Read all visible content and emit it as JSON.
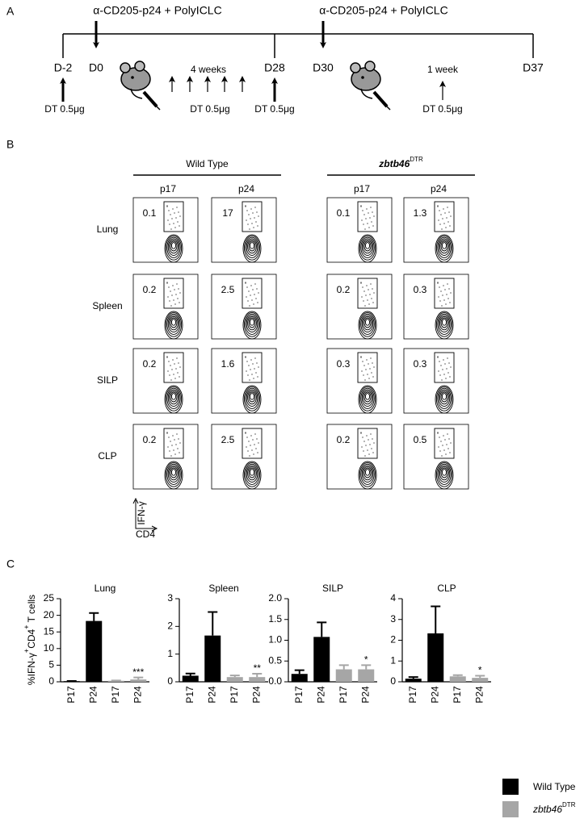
{
  "panel_a": {
    "label": "A",
    "injection_labels": [
      "α-CD205-p24 + PolyICLC",
      "α-CD205-p24 + PolyICLC"
    ],
    "timepoints": [
      "D-2",
      "D0",
      "D28",
      "D30",
      "D37"
    ],
    "durations": [
      "4 weeks",
      "1 week"
    ],
    "dt_labels": [
      "DT 0.5μg",
      "DT 0.5μg",
      "DT 0.5μg",
      "DT 0.5μg"
    ]
  },
  "panel_b": {
    "label": "B",
    "groups": [
      {
        "name": "Wild Type"
      },
      {
        "name": "zbtb46",
        "superscript": "DTR"
      }
    ],
    "columns": [
      "p17",
      "p24",
      "p17",
      "p24"
    ],
    "rows": [
      "Lung",
      "Spleen",
      "SILP",
      "CLP"
    ],
    "values": [
      [
        0.1,
        17,
        0.1,
        1.3
      ],
      [
        0.2,
        2.5,
        0.2,
        0.3
      ],
      [
        0.2,
        1.6,
        0.3,
        0.3
      ],
      [
        0.2,
        2.5,
        0.2,
        0.5
      ]
    ],
    "y_axis": "IFN-γ",
    "x_axis": "CD4"
  },
  "panel_c": {
    "label": "C",
    "y_label_parts": [
      "%IFN-γ",
      "+",
      "CD4",
      "+",
      " T cells"
    ],
    "legend": [
      {
        "name": "Wild Type",
        "color": "#000000"
      },
      {
        "name": "zbtb46",
        "superscript": "DTR",
        "color": "#a6a6a6"
      }
    ]
  },
  "chart_data": [
    {
      "type": "bar",
      "title": "Lung",
      "categories": [
        "P17",
        "P24",
        "P17",
        "P24"
      ],
      "values": [
        0.2,
        18.3,
        0.3,
        0.7
      ],
      "errors": [
        0.05,
        2.4,
        0.1,
        0.6
      ],
      "colors": [
        "#000000",
        "#000000",
        "#a6a6a6",
        "#a6a6a6"
      ],
      "annotations": [
        null,
        null,
        null,
        "***"
      ],
      "ylim": [
        0,
        25
      ],
      "yticks": [
        0,
        5,
        10,
        15,
        20,
        25
      ]
    },
    {
      "type": "bar",
      "title": "Spleen",
      "categories": [
        "P17",
        "P24",
        "P17",
        "P24"
      ],
      "values": [
        0.22,
        1.67,
        0.17,
        0.17
      ],
      "errors": [
        0.08,
        0.85,
        0.06,
        0.12
      ],
      "colors": [
        "#000000",
        "#000000",
        "#a6a6a6",
        "#a6a6a6"
      ],
      "annotations": [
        null,
        null,
        null,
        "**"
      ],
      "ylim": [
        0,
        3
      ],
      "yticks": [
        0,
        1,
        2,
        3
      ]
    },
    {
      "type": "bar",
      "title": "SILP",
      "categories": [
        "P17",
        "P24",
        "P17",
        "P24"
      ],
      "values": [
        0.19,
        1.08,
        0.3,
        0.3
      ],
      "errors": [
        0.09,
        0.35,
        0.1,
        0.1
      ],
      "colors": [
        "#000000",
        "#000000",
        "#a6a6a6",
        "#a6a6a6"
      ],
      "annotations": [
        null,
        null,
        null,
        "*"
      ],
      "ylim": [
        0,
        2
      ],
      "yticks": [
        {
          "value": 0,
          "label": "0.0"
        },
        0.5,
        {
          "value": 1,
          "label": "1.0"
        },
        1.5,
        {
          "value": 2,
          "label": "2.0"
        }
      ]
    },
    {
      "type": "bar",
      "title": "CLP",
      "categories": [
        "P17",
        "P24",
        "P17",
        "P24"
      ],
      "values": [
        0.15,
        2.33,
        0.26,
        0.19
      ],
      "errors": [
        0.08,
        1.3,
        0.06,
        0.1
      ],
      "colors": [
        "#000000",
        "#000000",
        "#a6a6a6",
        "#a6a6a6"
      ],
      "annotations": [
        null,
        null,
        null,
        "*"
      ],
      "ylim": [
        0,
        4
      ],
      "yticks": [
        0,
        1,
        2,
        3,
        4
      ]
    }
  ]
}
